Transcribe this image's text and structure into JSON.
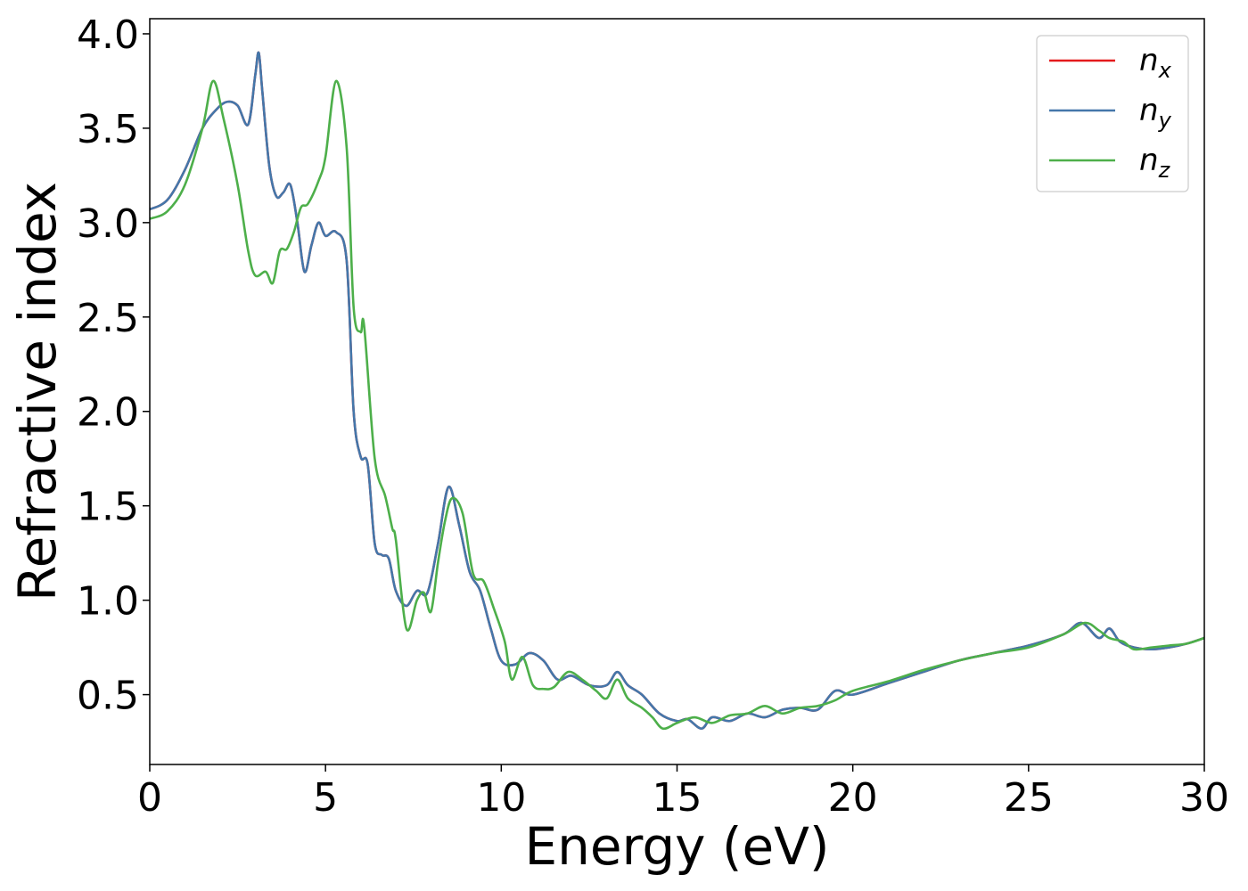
{
  "chart_data": {
    "type": "line",
    "xlabel": "Energy (eV)",
    "ylabel": "Refractive index",
    "xlim": [
      0,
      30
    ],
    "ylim": [
      0.13,
      4.08
    ],
    "xticks": [
      0,
      5,
      10,
      15,
      20,
      25,
      30
    ],
    "xtick_labels": [
      "0",
      "5",
      "10",
      "15",
      "20",
      "25",
      "30"
    ],
    "yticks": [
      0.5,
      1.0,
      1.5,
      2.0,
      2.5,
      3.0,
      3.5,
      4.0
    ],
    "ytick_labels": [
      "0.5",
      "1.0",
      "1.5",
      "2.0",
      "2.5",
      "3.0",
      "3.5",
      "4.0"
    ],
    "grid": false,
    "legend": "top-right",
    "series": [
      {
        "name": "n_x",
        "label_base": "n",
        "label_sub": "x",
        "color": "#e41a1c",
        "x": [
          0,
          0.5,
          1.0,
          1.5,
          1.9,
          2.2,
          2.5,
          2.8,
          3.0,
          3.1,
          3.2,
          3.4,
          3.6,
          3.8,
          4.0,
          4.2,
          4.4,
          4.6,
          4.8,
          5.0,
          5.3,
          5.6,
          5.8,
          6.0,
          6.2,
          6.4,
          6.6,
          6.8,
          7.0,
          7.3,
          7.6,
          7.9,
          8.2,
          8.5,
          8.8,
          9.1,
          9.4,
          9.7,
          10.0,
          10.4,
          10.8,
          11.2,
          11.6,
          12.0,
          12.5,
          13.0,
          13.3,
          13.6,
          14.0,
          14.5,
          15.0,
          15.3,
          15.7,
          16.0,
          16.5,
          17.0,
          17.5,
          18.0,
          18.5,
          19.0,
          19.5,
          20.0,
          21.0,
          22.0,
          23.0,
          24.0,
          25.0,
          26.0,
          26.5,
          27.0,
          27.3,
          27.6,
          28.0,
          28.5,
          29.0,
          29.5,
          30.0
        ],
        "values": [
          3.07,
          3.12,
          3.28,
          3.5,
          3.6,
          3.64,
          3.62,
          3.52,
          3.78,
          3.9,
          3.7,
          3.3,
          3.14,
          3.16,
          3.2,
          3.0,
          2.74,
          2.88,
          3.0,
          2.93,
          2.95,
          2.8,
          2.0,
          1.76,
          1.72,
          1.3,
          1.24,
          1.22,
          1.05,
          0.97,
          1.05,
          1.04,
          1.3,
          1.6,
          1.4,
          1.15,
          1.05,
          0.85,
          0.68,
          0.66,
          0.72,
          0.68,
          0.58,
          0.6,
          0.55,
          0.55,
          0.62,
          0.55,
          0.5,
          0.4,
          0.36,
          0.37,
          0.32,
          0.38,
          0.36,
          0.4,
          0.38,
          0.42,
          0.43,
          0.42,
          0.52,
          0.5,
          0.56,
          0.62,
          0.68,
          0.72,
          0.76,
          0.82,
          0.88,
          0.8,
          0.85,
          0.78,
          0.75,
          0.74,
          0.75,
          0.77,
          0.8
        ]
      },
      {
        "name": "n_y",
        "label_base": "n",
        "label_sub": "y",
        "color": "#4477aa",
        "x": [
          0,
          0.5,
          1.0,
          1.5,
          1.9,
          2.2,
          2.5,
          2.8,
          3.0,
          3.1,
          3.2,
          3.4,
          3.6,
          3.8,
          4.0,
          4.2,
          4.4,
          4.6,
          4.8,
          5.0,
          5.3,
          5.6,
          5.8,
          6.0,
          6.2,
          6.4,
          6.6,
          6.8,
          7.0,
          7.3,
          7.6,
          7.9,
          8.2,
          8.5,
          8.8,
          9.1,
          9.4,
          9.7,
          10.0,
          10.4,
          10.8,
          11.2,
          11.6,
          12.0,
          12.5,
          13.0,
          13.3,
          13.6,
          14.0,
          14.5,
          15.0,
          15.3,
          15.7,
          16.0,
          16.5,
          17.0,
          17.5,
          18.0,
          18.5,
          19.0,
          19.5,
          20.0,
          21.0,
          22.0,
          23.0,
          24.0,
          25.0,
          26.0,
          26.5,
          27.0,
          27.3,
          27.6,
          28.0,
          28.5,
          29.0,
          29.5,
          30.0
        ],
        "values": [
          3.07,
          3.12,
          3.28,
          3.5,
          3.6,
          3.64,
          3.62,
          3.52,
          3.78,
          3.9,
          3.7,
          3.3,
          3.14,
          3.16,
          3.2,
          3.0,
          2.74,
          2.88,
          3.0,
          2.93,
          2.95,
          2.8,
          2.0,
          1.76,
          1.72,
          1.3,
          1.24,
          1.22,
          1.05,
          0.97,
          1.05,
          1.04,
          1.3,
          1.6,
          1.4,
          1.15,
          1.05,
          0.85,
          0.68,
          0.66,
          0.72,
          0.68,
          0.58,
          0.6,
          0.55,
          0.55,
          0.62,
          0.55,
          0.5,
          0.4,
          0.36,
          0.37,
          0.32,
          0.38,
          0.36,
          0.4,
          0.38,
          0.42,
          0.43,
          0.42,
          0.52,
          0.5,
          0.56,
          0.62,
          0.68,
          0.72,
          0.76,
          0.82,
          0.88,
          0.8,
          0.85,
          0.78,
          0.75,
          0.74,
          0.75,
          0.77,
          0.8
        ]
      },
      {
        "name": "n_z",
        "label_base": "n",
        "label_sub": "z",
        "color": "#4daf4a",
        "x": [
          0,
          0.5,
          1.0,
          1.5,
          1.8,
          2.1,
          2.5,
          2.8,
          3.0,
          3.3,
          3.5,
          3.7,
          3.9,
          4.1,
          4.3,
          4.5,
          4.8,
          5.0,
          5.3,
          5.6,
          5.8,
          6.0,
          6.1,
          6.4,
          6.7,
          6.9,
          7.0,
          7.3,
          7.6,
          7.8,
          8.0,
          8.2,
          8.4,
          8.6,
          8.9,
          9.2,
          9.5,
          9.8,
          10.1,
          10.3,
          10.6,
          10.9,
          11.2,
          11.5,
          11.9,
          12.3,
          12.7,
          13.0,
          13.3,
          13.6,
          14.0,
          14.3,
          14.6,
          15.0,
          15.5,
          16.0,
          16.5,
          17.0,
          17.5,
          18.0,
          18.5,
          19.0,
          19.5,
          20.0,
          21.0,
          22.0,
          23.0,
          24.0,
          25.0,
          26.0,
          26.6,
          27.0,
          27.3,
          27.7,
          28.0,
          28.5,
          29.0,
          29.5,
          30.0
        ],
        "values": [
          3.02,
          3.06,
          3.2,
          3.5,
          3.75,
          3.55,
          3.2,
          2.85,
          2.72,
          2.74,
          2.68,
          2.85,
          2.86,
          2.95,
          3.08,
          3.1,
          3.22,
          3.35,
          3.75,
          3.4,
          2.55,
          2.42,
          2.45,
          1.75,
          1.55,
          1.38,
          1.32,
          0.85,
          1.0,
          1.04,
          0.94,
          1.2,
          1.42,
          1.54,
          1.46,
          1.14,
          1.1,
          0.95,
          0.78,
          0.58,
          0.7,
          0.55,
          0.53,
          0.54,
          0.62,
          0.58,
          0.52,
          0.48,
          0.58,
          0.48,
          0.43,
          0.38,
          0.32,
          0.35,
          0.38,
          0.35,
          0.39,
          0.4,
          0.44,
          0.4,
          0.43,
          0.44,
          0.47,
          0.52,
          0.57,
          0.63,
          0.68,
          0.72,
          0.75,
          0.82,
          0.88,
          0.84,
          0.8,
          0.78,
          0.74,
          0.75,
          0.76,
          0.77,
          0.8
        ]
      }
    ]
  }
}
